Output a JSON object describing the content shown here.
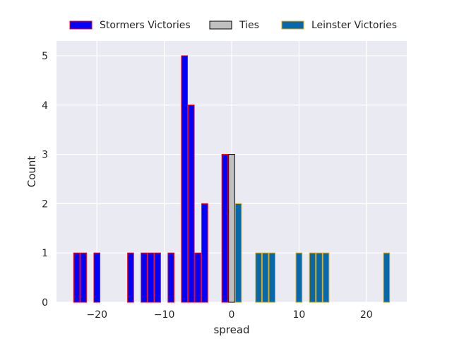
{
  "chart_data": {
    "type": "bar",
    "xlabel": "spread",
    "ylabel": "Count",
    "xlim": [
      -26,
      26
    ],
    "ylim": [
      0,
      5.3
    ],
    "x_ticks": [
      -20,
      -10,
      0,
      10,
      20
    ],
    "y_ticks": [
      0,
      1,
      2,
      3,
      4,
      5
    ],
    "grid": true,
    "legend_position": "top-center",
    "background_color": "#EAEAF2",
    "series": [
      {
        "name": "Stormers Victories",
        "fill": "#0000FF",
        "edge": "#FF0000",
        "bars": [
          {
            "x": -23,
            "count": 1
          },
          {
            "x": -22,
            "count": 1
          },
          {
            "x": -20,
            "count": 1
          },
          {
            "x": -15,
            "count": 1
          },
          {
            "x": -13,
            "count": 1
          },
          {
            "x": -12,
            "count": 1
          },
          {
            "x": -11,
            "count": 1
          },
          {
            "x": -9,
            "count": 1
          },
          {
            "x": -7,
            "count": 5
          },
          {
            "x": -6,
            "count": 4
          },
          {
            "x": -5,
            "count": 1
          },
          {
            "x": -4,
            "count": 2
          },
          {
            "x": -1,
            "count": 3
          }
        ]
      },
      {
        "name": "Ties",
        "fill": "#C0C0C0",
        "edge": "#000000",
        "bars": [
          {
            "x": 0,
            "count": 3
          }
        ]
      },
      {
        "name": "Leinster Victories",
        "fill": "#0868AC",
        "edge": "#E5A800",
        "bars": [
          {
            "x": 1,
            "count": 2
          },
          {
            "x": 4,
            "count": 1
          },
          {
            "x": 5,
            "count": 1
          },
          {
            "x": 6,
            "count": 1
          },
          {
            "x": 10,
            "count": 1
          },
          {
            "x": 12,
            "count": 1
          },
          {
            "x": 13,
            "count": 1
          },
          {
            "x": 14,
            "count": 1
          },
          {
            "x": 23,
            "count": 1
          }
        ]
      }
    ]
  }
}
